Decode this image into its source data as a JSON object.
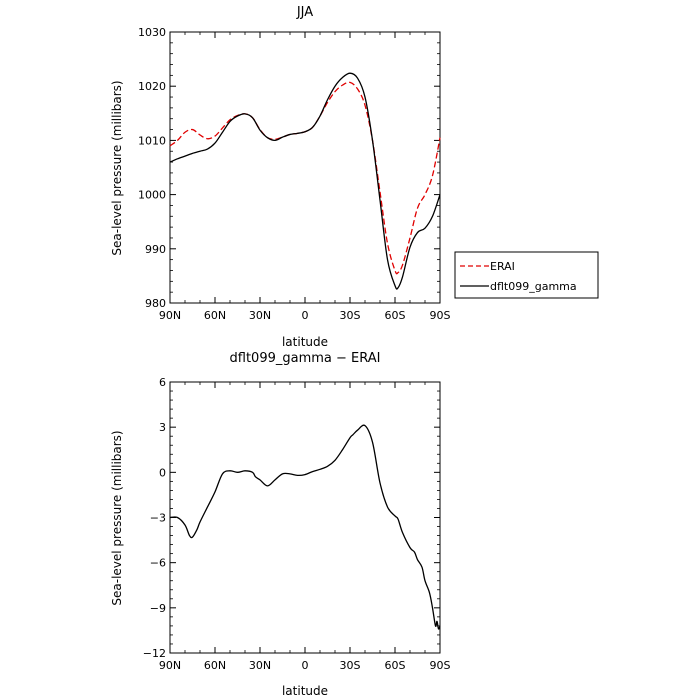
{
  "figure_title": "",
  "chart_data": [
    {
      "type": "line",
      "title": "JJA",
      "xlabel": "latitude",
      "ylabel": "Sea-level pressure (millibars)",
      "x_tick_labels": [
        "90N",
        "60N",
        "30N",
        "0",
        "30S",
        "60S",
        "90S"
      ],
      "x_ticks": [
        90,
        60,
        30,
        0,
        -30,
        -60,
        -90
      ],
      "xlim": [
        90,
        -90
      ],
      "ylim": [
        980,
        1030
      ],
      "y_ticks": [
        980,
        990,
        1000,
        1010,
        1020,
        1030
      ],
      "y_tick_labels": [
        "980",
        "990",
        "1000",
        "1010",
        "1020",
        "1030"
      ],
      "legend_position": "right",
      "grid": false,
      "series": [
        {
          "name": "ERAI",
          "color": "#e00000",
          "dash": "dashed",
          "x": [
            90,
            85,
            80,
            75,
            70,
            65,
            60,
            55,
            50,
            45,
            40,
            35,
            30,
            25,
            20,
            15,
            10,
            5,
            0,
            -5,
            -10,
            -15,
            -20,
            -25,
            -30,
            -35,
            -40,
            -45,
            -50,
            -55,
            -60,
            -62,
            -65,
            -70,
            -75,
            -80,
            -85,
            -90
          ],
          "values": [
            1009.0,
            1010.0,
            1011.5,
            1012.0,
            1011.0,
            1010.3,
            1010.8,
            1012.3,
            1013.8,
            1014.6,
            1014.9,
            1014.2,
            1012.0,
            1010.5,
            1010.2,
            1010.6,
            1011.1,
            1011.3,
            1011.6,
            1012.4,
            1014.5,
            1017.0,
            1019.0,
            1020.2,
            1020.7,
            1019.5,
            1016.5,
            1010.0,
            1000.5,
            991.0,
            986.0,
            985.6,
            987.0,
            992.0,
            997.5,
            1000.0,
            1003.5,
            1010.5
          ]
        },
        {
          "name": "dflt099_gamma",
          "color": "#000000",
          "dash": "solid",
          "x": [
            90,
            85,
            80,
            75,
            70,
            65,
            60,
            55,
            50,
            45,
            40,
            35,
            30,
            25,
            20,
            15,
            10,
            5,
            0,
            -5,
            -10,
            -15,
            -20,
            -25,
            -30,
            -35,
            -40,
            -45,
            -50,
            -55,
            -60,
            -62,
            -65,
            -70,
            -75,
            -80,
            -85,
            -90
          ],
          "values": [
            1006.0,
            1006.6,
            1007.1,
            1007.6,
            1008.0,
            1008.4,
            1009.5,
            1011.5,
            1013.5,
            1014.5,
            1014.9,
            1014.2,
            1011.9,
            1010.5,
            1010.0,
            1010.6,
            1011.1,
            1011.3,
            1011.6,
            1012.4,
            1014.5,
            1017.5,
            1020.0,
            1021.6,
            1022.4,
            1021.5,
            1018.0,
            1010.0,
            999.0,
            988.0,
            983.2,
            982.8,
            984.8,
            990.3,
            993.0,
            993.8,
            996.0,
            1000.0
          ]
        }
      ]
    },
    {
      "type": "line",
      "title": "dflt099_gamma − ERAI",
      "xlabel": "latitude",
      "ylabel": "Sea-level pressure (millibars)",
      "x_tick_labels": [
        "90N",
        "60N",
        "30N",
        "0",
        "30S",
        "60S",
        "90S"
      ],
      "x_ticks": [
        90,
        60,
        30,
        0,
        -30,
        -60,
        -90
      ],
      "xlim": [
        90,
        -90
      ],
      "ylim": [
        -12,
        6
      ],
      "y_ticks": [
        -12,
        -9,
        -6,
        -3,
        0,
        3,
        6
      ],
      "y_tick_labels": [
        "−12",
        "−9",
        "−6",
        "−3",
        "0",
        "3",
        "6"
      ],
      "grid": false,
      "series": [
        {
          "name": "",
          "color": "#000000",
          "dash": "solid",
          "x": [
            90,
            85,
            80,
            77,
            75,
            72,
            70,
            65,
            60,
            55,
            50,
            45,
            40,
            35,
            33,
            30,
            25,
            20,
            15,
            10,
            5,
            0,
            -5,
            -10,
            -15,
            -20,
            -25,
            -30,
            -32,
            -35,
            -40,
            -45,
            -50,
            -55,
            -60,
            -62,
            -65,
            -70,
            -73,
            -75,
            -78,
            -80,
            -83,
            -85,
            -87,
            -88,
            -89,
            -90
          ],
          "values": [
            -3.0,
            -3.0,
            -3.5,
            -4.2,
            -4.3,
            -3.8,
            -3.3,
            -2.3,
            -1.3,
            -0.1,
            0.1,
            0.0,
            0.1,
            0.0,
            -0.3,
            -0.5,
            -0.9,
            -0.5,
            -0.1,
            -0.1,
            -0.2,
            -0.15,
            0.05,
            0.2,
            0.4,
            0.8,
            1.5,
            2.3,
            2.5,
            2.8,
            3.1,
            2.0,
            -0.7,
            -2.3,
            -2.9,
            -3.1,
            -4.0,
            -5.0,
            -5.3,
            -5.8,
            -6.3,
            -7.2,
            -8.0,
            -9.0,
            -10.2,
            -9.9,
            -10.4,
            -10.2
          ]
        }
      ]
    }
  ]
}
